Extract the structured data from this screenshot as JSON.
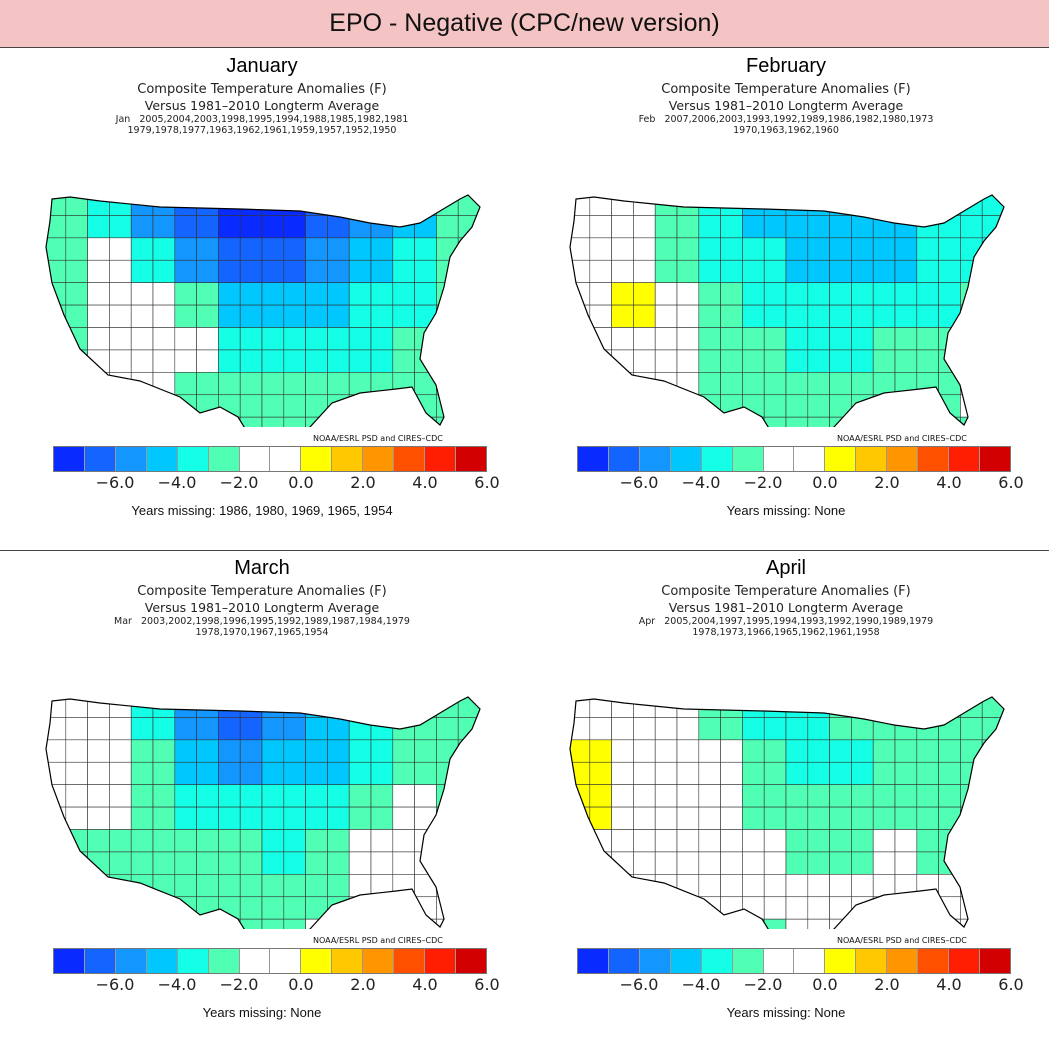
{
  "header": {
    "title": "EPO - Negative (CPC/new version)"
  },
  "colors": {
    "header_bg": "#f4c4c4",
    "scale": [
      "#0a2bff",
      "#1464ff",
      "#1496ff",
      "#00c8ff",
      "#14ffe6",
      "#50ffb4",
      "#ffffff",
      "#ffffff",
      "#ffff00",
      "#ffc800",
      "#ff9600",
      "#ff5000",
      "#ff1e00",
      "#d20000"
    ]
  },
  "common": {
    "line1": "Composite Temperature Anomalies (F)",
    "line2": "Versus 1981–2010 Longterm Average",
    "credit": "NOAA/ESRL PSD and CIRES–CDC",
    "ticks": [
      "−6.0",
      "−4.0",
      "−2.0",
      "0.0",
      "2.0",
      "4.0",
      "6.0"
    ]
  },
  "chart_data": [
    {
      "type": "heatmap",
      "title": "January",
      "years_line1": "Jan   2005,2004,2003,1998,1995,1994,1988,1985,1982,1981",
      "years_line2": "1979,1978,1977,1963,1962,1961,1959,1957,1952,1950",
      "missing": "Years missing: 1986, 1980, 1969, 1965, 1954",
      "units": "F",
      "scale_range": [
        -7,
        7
      ],
      "grid_anomaly": [
        [
          -2,
          -3,
          -5,
          -6,
          -7,
          -7,
          -6,
          -5,
          -4,
          -2
        ],
        [
          -2,
          -1,
          -3,
          -5,
          -6,
          -6,
          -5,
          -4,
          -3,
          -2
        ],
        [
          -2,
          0,
          0,
          -2,
          -4,
          -4,
          -4,
          -3,
          -3,
          -2
        ],
        [
          -2,
          0,
          0,
          -1,
          -3,
          -3,
          -3,
          -3,
          -2,
          -2
        ],
        [
          -2,
          0,
          0,
          -2,
          -2,
          -2,
          -2,
          -2,
          -2,
          -2
        ],
        [
          0,
          0,
          0,
          -2,
          -2,
          -2,
          -2,
          -2,
          -2,
          -2
        ]
      ]
    },
    {
      "type": "heatmap",
      "title": "February",
      "years_line1": "Feb   2007,2006,2003,1993,1992,1989,1986,1982,1980,1973",
      "years_line2": "1970,1963,1962,1960",
      "missing": "Years missing: None",
      "units": "F",
      "scale_range": [
        -7,
        7
      ],
      "grid_anomaly": [
        [
          0,
          0,
          -2,
          -3,
          -4,
          -4,
          -4,
          -4,
          -3,
          -3
        ],
        [
          0,
          0,
          -2,
          -3,
          -3,
          -4,
          -4,
          -4,
          -3,
          -3
        ],
        [
          0,
          1,
          0,
          -2,
          -3,
          -3,
          -3,
          -3,
          -3,
          -2
        ],
        [
          0,
          0,
          0,
          -2,
          -2,
          -3,
          -3,
          -2,
          -2,
          -2
        ],
        [
          0,
          0,
          0,
          -2,
          -2,
          -2,
          -2,
          -2,
          -2,
          0
        ],
        [
          0,
          0,
          0,
          -2,
          -2,
          -2,
          -2,
          -2,
          -2,
          -2
        ]
      ]
    },
    {
      "type": "heatmap",
      "title": "March",
      "years_line1": "Mar   2003,2002,1998,1996,1995,1992,1989,1987,1984,1979",
      "years_line2": "1978,1970,1967,1965,1954",
      "missing": "Years missing: None",
      "units": "F",
      "scale_range": [
        -7,
        7
      ],
      "grid_anomaly": [
        [
          0,
          0,
          -3,
          -5,
          -6,
          -5,
          -4,
          -3,
          -2,
          -2
        ],
        [
          0,
          0,
          -2,
          -4,
          -5,
          -4,
          -4,
          -3,
          -2,
          -2
        ],
        [
          0,
          0,
          -2,
          -3,
          -3,
          -3,
          -3,
          -2,
          0,
          -2
        ],
        [
          -2,
          -2,
          -2,
          -2,
          -2,
          -3,
          -2,
          0,
          0,
          0
        ],
        [
          -2,
          -2,
          -2,
          -2,
          -2,
          -2,
          -2,
          0,
          0,
          0
        ],
        [
          0,
          -2,
          -2,
          -2,
          -2,
          -2,
          0,
          0,
          0,
          0
        ]
      ]
    },
    {
      "type": "heatmap",
      "title": "April",
      "years_line1": "Apr   2005,2004,1997,1995,1994,1993,1992,1990,1989,1979",
      "years_line2": "1978,1973,1966,1965,1962,1961,1958",
      "missing": "Years missing: None",
      "units": "F",
      "scale_range": [
        -7,
        7
      ],
      "grid_anomaly": [
        [
          0,
          0,
          0,
          -2,
          -3,
          -3,
          -2,
          -2,
          -2,
          -2
        ],
        [
          1,
          0,
          0,
          0,
          -2,
          -3,
          -3,
          -2,
          -2,
          -2
        ],
        [
          1,
          0,
          0,
          0,
          -2,
          -2,
          -2,
          -2,
          -2,
          -2
        ],
        [
          0,
          0,
          0,
          0,
          0,
          -2,
          -2,
          0,
          -2,
          -2
        ],
        [
          0,
          0,
          0,
          0,
          0,
          0,
          0,
          0,
          0,
          0
        ],
        [
          0,
          0,
          0,
          0,
          -2,
          0,
          0,
          0,
          0,
          0
        ]
      ]
    }
  ]
}
